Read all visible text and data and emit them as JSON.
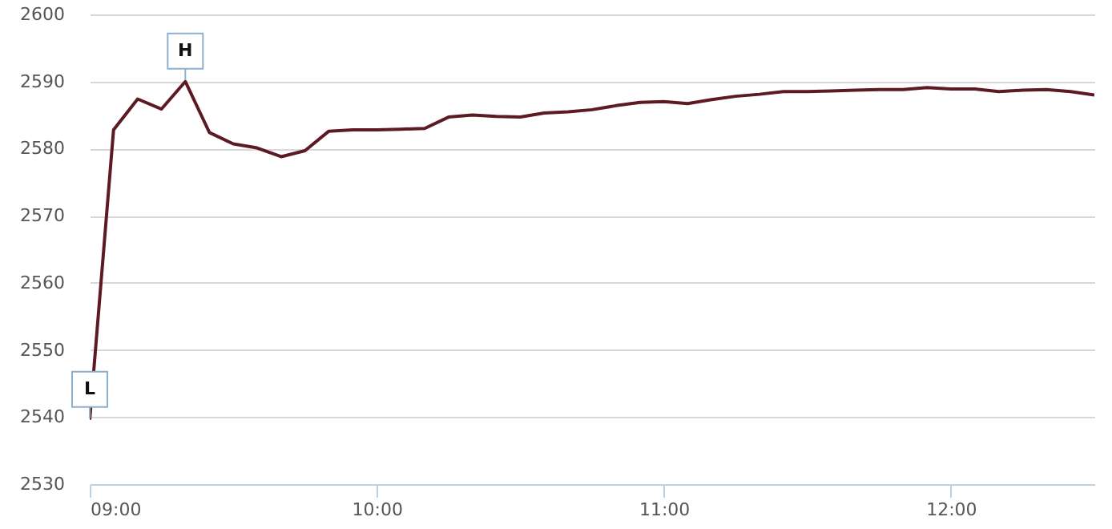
{
  "chart_data": {
    "type": "line",
    "x": [
      9,
      9.083,
      9.167,
      9.25,
      9.333,
      9.417,
      9.5,
      9.583,
      9.667,
      9.75,
      9.833,
      9.917,
      10,
      10.083,
      10.167,
      10.25,
      10.333,
      10.417,
      10.5,
      10.583,
      10.667,
      10.75,
      10.833,
      10.917,
      11,
      11.083,
      11.167,
      11.25,
      11.333,
      11.417,
      11.5,
      11.583,
      11.667,
      11.75,
      11.833,
      11.917,
      12,
      12.083,
      12.167,
      12.25,
      12.333,
      12.417,
      12.5
    ],
    "series": [
      {
        "color": "#5c1a22",
        "values": [
          2539.6,
          2582.8,
          2587.4,
          2585.9,
          2590,
          2582.4,
          2580.7,
          2580.1,
          2578.8,
          2579.7,
          2582.6,
          2582.8,
          2582.8,
          2582.9,
          2583,
          2584.7,
          2585,
          2584.8,
          2584.7,
          2585.3,
          2585.5,
          2585.8,
          2586.4,
          2586.9,
          2587,
          2586.7,
          2587.3,
          2587.8,
          2588.1,
          2588.5,
          2588.5,
          2588.6,
          2588.7,
          2588.8,
          2588.8,
          2589.1,
          2588.9,
          2588.9,
          2588.5,
          2588.7,
          2588.8,
          2588.5,
          2588
        ]
      }
    ],
    "xlim": [
      9,
      12.5
    ],
    "xticks": [
      {
        "value": 9,
        "label": "09:00"
      },
      {
        "value": 10,
        "label": "10:00"
      },
      {
        "value": 11,
        "label": "11:00"
      },
      {
        "value": 12,
        "label": "12:00"
      }
    ],
    "ylim": [
      2530,
      2600
    ],
    "yticks": [
      2530,
      2540,
      2550,
      2560,
      2570,
      2580,
      2590,
      2600
    ],
    "grid": "y",
    "annotations": [
      {
        "text": "H",
        "x": 9.333,
        "y": 2590
      },
      {
        "text": "L",
        "x": 9,
        "y": 2539.6
      }
    ]
  }
}
